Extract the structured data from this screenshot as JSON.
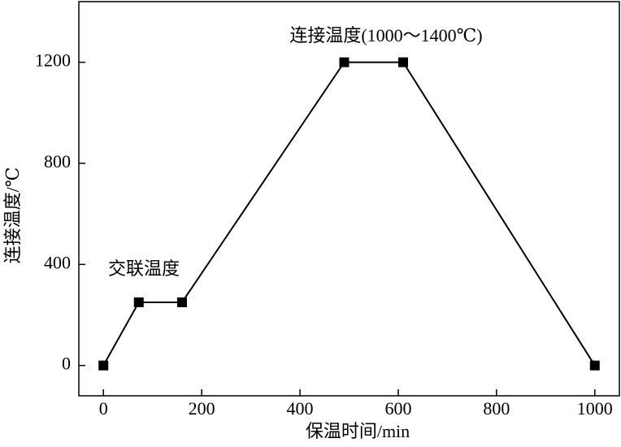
{
  "chart_data": {
    "type": "line",
    "x_label": "保温时间/min",
    "y_label": "连接温度/℃",
    "annotations": [
      "连接温度(1000～1400℃)",
      "交联温度"
    ],
    "x": [
      0,
      72,
      160,
      490,
      610,
      1000
    ],
    "series": [
      {
        "color": "#000000",
        "values": [
          0,
          250,
          250,
          1200,
          1200,
          0
        ]
      }
    ],
    "xlim": [
      -50,
      1050
    ],
    "ylim": [
      -120,
      1440
    ],
    "xticks": [
      0,
      200,
      400,
      600,
      800,
      1000
    ],
    "yticks": [
      0,
      400,
      800,
      1200
    ]
  }
}
